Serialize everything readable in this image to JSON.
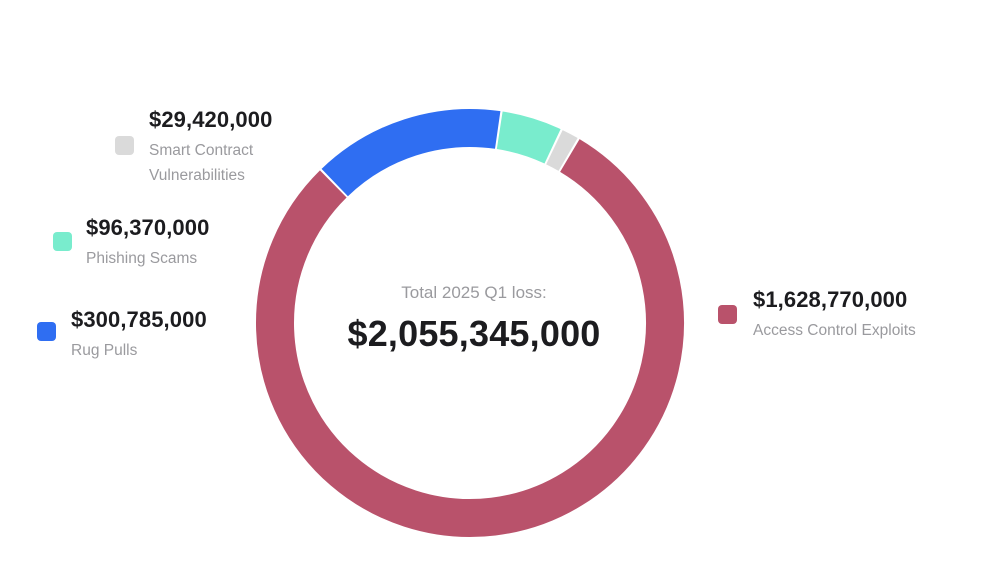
{
  "chart_data": {
    "type": "pie",
    "variant": "donut",
    "center_caption": "Total 2025 Q1 loss:",
    "center_total": "$2,055,345,000",
    "total": 2055345000,
    "slices": [
      {
        "name": "Access Control Exploits",
        "value": 1628770000,
        "display": "$1,628,770,000",
        "label_lines": [
          "Access Control Exploits"
        ],
        "color": "#b9526b"
      },
      {
        "name": "Rug Pulls",
        "value": 300785000,
        "display": "$300,785,000",
        "label_lines": [
          "Rug Pulls"
        ],
        "color": "#2f6ef2"
      },
      {
        "name": "Phishing Scams",
        "value": 96370000,
        "display": "$96,370,000",
        "label_lines": [
          "Phishing Scams"
        ],
        "color": "#79eccd"
      },
      {
        "name": "Smart Contract Vulnerabilities",
        "value": 29420000,
        "display": "$29,420,000",
        "label_lines": [
          "Smart Contract",
          "Vulnerabilities"
        ],
        "color": "#dadada"
      }
    ]
  }
}
